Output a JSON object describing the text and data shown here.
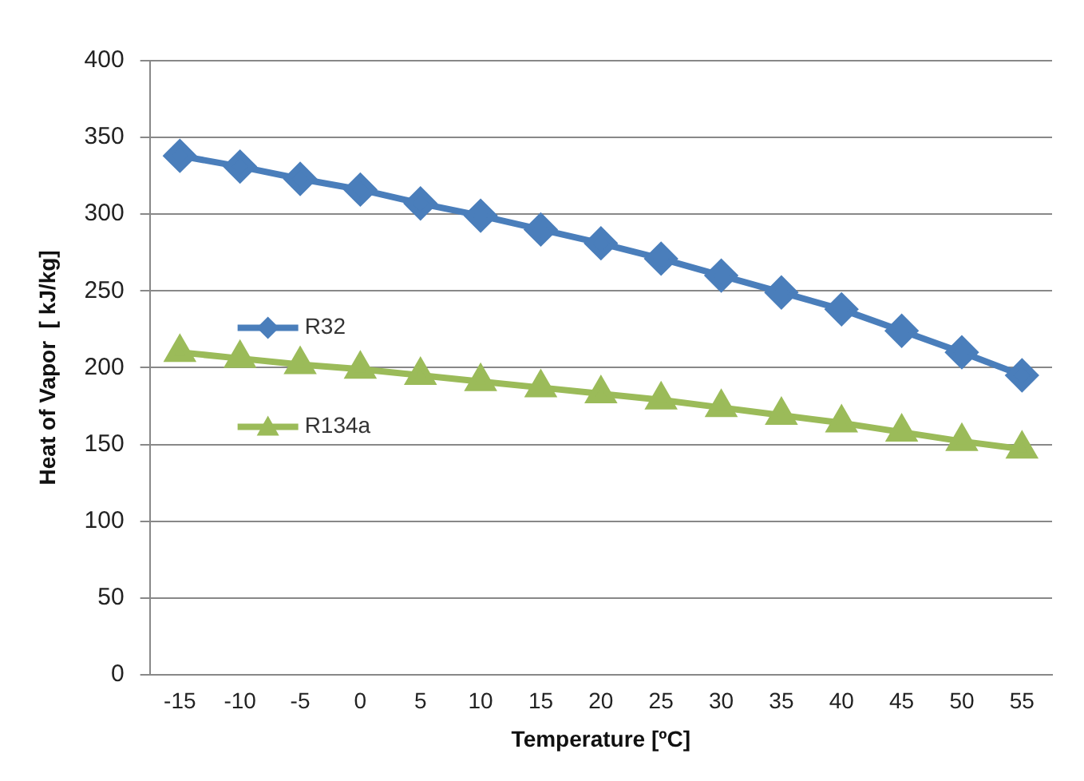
{
  "chart_data": {
    "type": "line",
    "xlabel": "Temperature [ºC]",
    "ylabel": "Heat of Vapor  [ kJ/kg]",
    "categories": [
      "-15",
      "-10",
      "-5",
      "0",
      "5",
      "10",
      "15",
      "20",
      "25",
      "30",
      "35",
      "40",
      "45",
      "50",
      "55"
    ],
    "series": [
      {
        "name": "R32",
        "color": "#4a7ebb",
        "marker": "diamond",
        "values": [
          338,
          331,
          323,
          316,
          307,
          299,
          290,
          281,
          271,
          260,
          249,
          238,
          224,
          210,
          195
        ]
      },
      {
        "name": "R134a",
        "color": "#9bbb59",
        "marker": "triangle",
        "values": [
          210,
          206,
          202,
          199,
          195,
          191,
          187,
          183,
          179,
          174,
          169,
          164,
          158,
          152,
          147
        ]
      }
    ],
    "ylim": [
      0,
      400
    ],
    "yticks": [
      0,
      50,
      100,
      150,
      200,
      250,
      300,
      350,
      400
    ],
    "grid": "y",
    "legend": "left",
    "line_style": "solid"
  }
}
